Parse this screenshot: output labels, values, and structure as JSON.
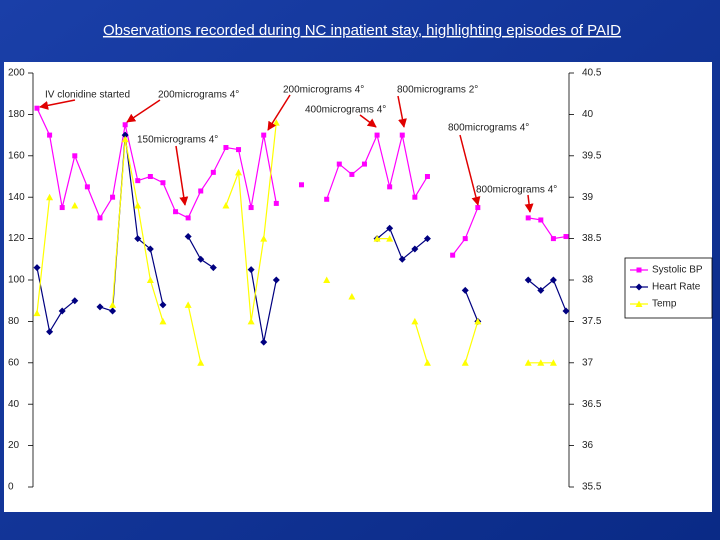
{
  "chart_data": {
    "type": "line",
    "title": "Observations recorded during NC inpatient stay, highlighting episodes of PAID",
    "categories": [
      null,
      null,
      null,
      null,
      null,
      null,
      null,
      null,
      null,
      null,
      null,
      null,
      null,
      null,
      null,
      null,
      null,
      null,
      null,
      null,
      null,
      null,
      null,
      null,
      null,
      null,
      null,
      null,
      null,
      null,
      null,
      null,
      null,
      null,
      null,
      null,
      null,
      null,
      null,
      null,
      null,
      null,
      null
    ],
    "series": [
      {
        "name": "Systolic BP",
        "color": "#ff00ff",
        "marker": "square",
        "values": [
          183,
          170,
          135,
          160,
          145,
          130,
          140,
          175,
          148,
          150,
          147,
          133,
          130,
          143,
          152,
          164,
          163,
          135,
          170,
          137,
          null,
          146,
          null,
          139,
          156,
          151,
          156,
          170,
          145,
          170,
          140,
          150,
          null,
          112,
          120,
          135,
          null,
          null,
          null,
          130,
          129,
          120,
          121
        ]
      },
      {
        "name": "Heart Rate",
        "color": "#000080",
        "marker": "diamond",
        "values": [
          106,
          75,
          85,
          90,
          null,
          87,
          85,
          170,
          120,
          115,
          88,
          null,
          121,
          110,
          106,
          null,
          null,
          105,
          70,
          100,
          null,
          null,
          null,
          null,
          null,
          null,
          null,
          120,
          125,
          110,
          115,
          120,
          null,
          null,
          95,
          80,
          null,
          null,
          null,
          100,
          95,
          100,
          85
        ]
      },
      {
        "name": "Temp",
        "color": "#ffff00",
        "marker": "triangle",
        "axis": "y2",
        "values": [
          37.6,
          39,
          null,
          38.9,
          null,
          null,
          37.7,
          39.7,
          38.9,
          38,
          37.5,
          null,
          37.7,
          37,
          null,
          38.9,
          39.3,
          37.5,
          38.5,
          39.9,
          null,
          null,
          null,
          38,
          null,
          37.8,
          null,
          38.5,
          38.5,
          null,
          37.5,
          37,
          null,
          null,
          37,
          37.5,
          null,
          null,
          null,
          37,
          37,
          37,
          null
        ]
      }
    ],
    "ylim": [
      0,
      200
    ],
    "yticks": [
      0,
      20,
      40,
      60,
      80,
      100,
      120,
      140,
      160,
      180,
      200
    ],
    "y2lim": [
      35.5,
      40.5
    ],
    "y2ticks": [
      35.5,
      36,
      36.5,
      37,
      37.5,
      38,
      38.5,
      39,
      39.5,
      40,
      40.5
    ],
    "legend": "right",
    "annotations": [
      "IV clonidine started",
      "200micrograms 4°",
      "200micrograms 4°",
      "800micrograms 2°",
      "400micrograms 4°",
      "150micrograms 4°",
      "800micrograms 4°",
      "800micrograms 4°"
    ]
  }
}
